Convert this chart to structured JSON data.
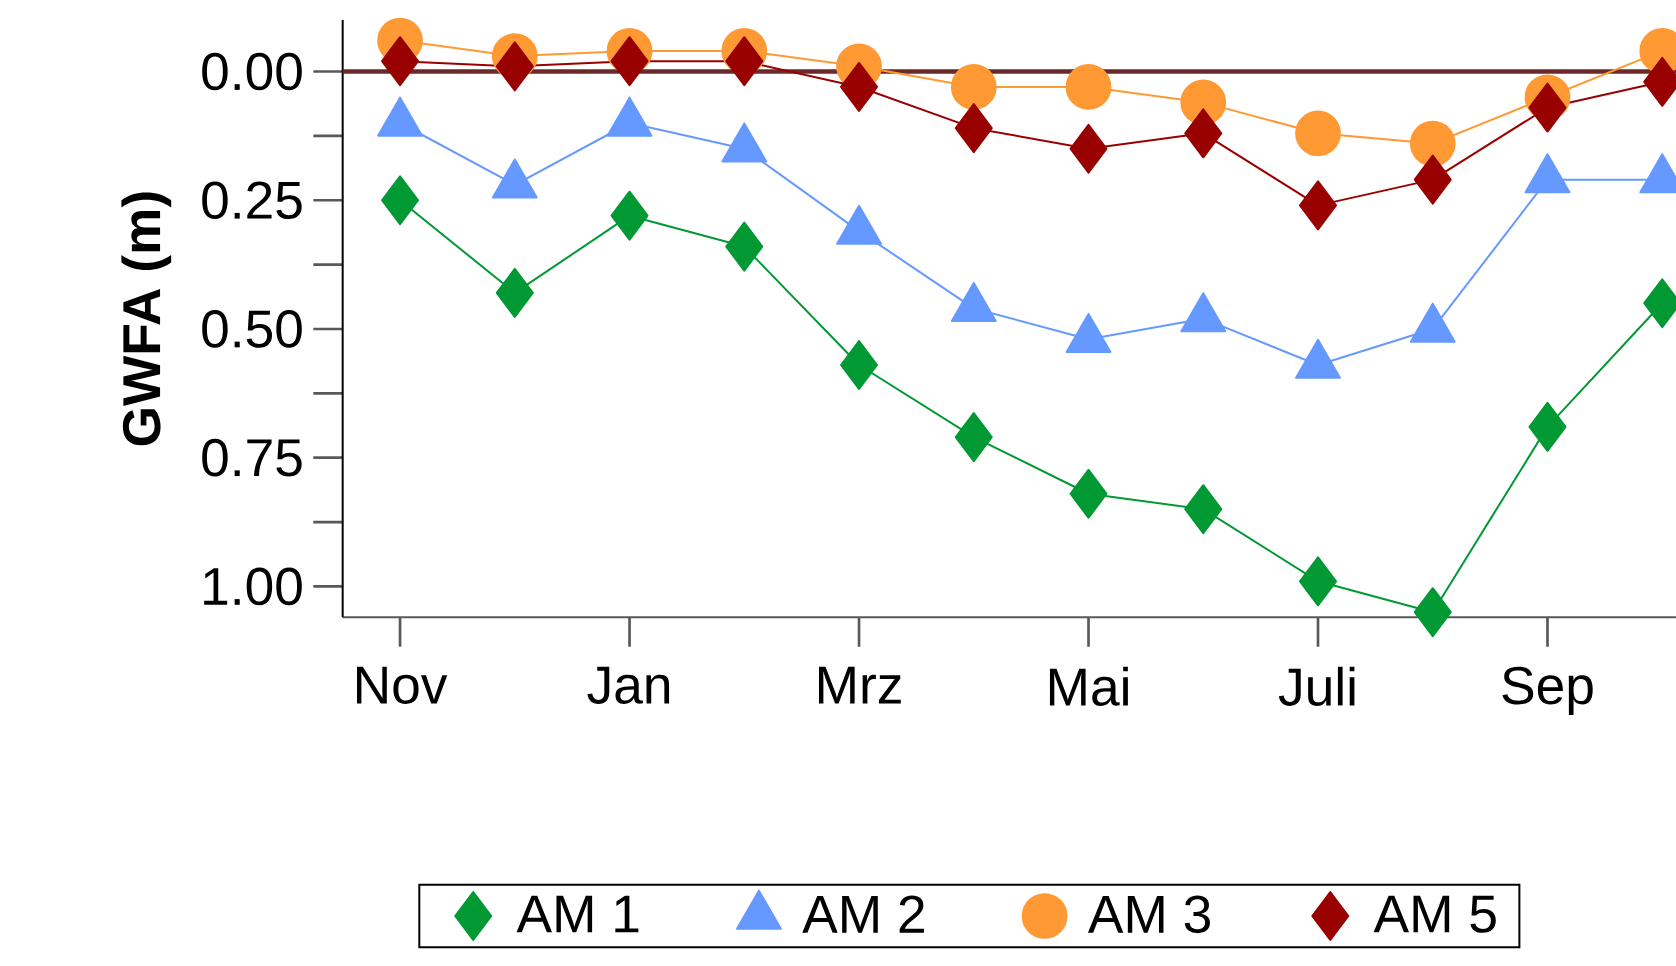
{
  "chart_data": {
    "type": "line",
    "ylabel": "GWFA (m)",
    "categories": [
      "Nov",
      null,
      "Jan",
      null,
      "Mrz",
      null,
      "Mai",
      null,
      "Juli",
      null,
      "Sep",
      null
    ],
    "series": [
      {
        "name": "AM 1",
        "color": "#009933",
        "marker": "diamond",
        "values": [
          0.25,
          0.43,
          0.28,
          0.34,
          0.57,
          0.71,
          0.82,
          0.85,
          0.99,
          1.05,
          0.69,
          0.45
        ]
      },
      {
        "name": "AM 2",
        "color": "#6699ff",
        "marker": "triangle",
        "values": [
          0.1,
          0.22,
          0.1,
          0.15,
          0.31,
          0.46,
          0.52,
          0.48,
          0.57,
          0.5,
          0.21,
          0.21
        ]
      },
      {
        "name": "AM 3",
        "color": "#ff9933",
        "marker": "circle",
        "values": [
          -0.06,
          -0.03,
          -0.04,
          -0.04,
          -0.01,
          0.03,
          0.03,
          0.06,
          0.12,
          0.14,
          0.05,
          -0.04
        ]
      },
      {
        "name": "AM 5",
        "color": "#990000",
        "marker": "diamond",
        "values": [
          -0.02,
          -0.01,
          -0.02,
          -0.02,
          0.03,
          0.11,
          0.15,
          0.12,
          0.26,
          0.21,
          0.07,
          0.02
        ]
      }
    ],
    "ylim": [
      1.06,
      -0.1
    ],
    "yticks": [
      {
        "value": 0,
        "label": "0.00"
      },
      {
        "value": 0.125,
        "label": null
      },
      {
        "value": 0.25,
        "label": "0.25"
      },
      {
        "value": 0.375,
        "label": null
      },
      {
        "value": 0.5,
        "label": "0.50"
      },
      {
        "value": 0.625,
        "label": null
      },
      {
        "value": 0.75,
        "label": "0.75"
      },
      {
        "value": 0.875,
        "label": null
      },
      {
        "value": 1,
        "label": "1.00"
      }
    ],
    "ref_lines": [
      {
        "axis": "y",
        "value": 0,
        "color": "#6b2a2a"
      }
    ],
    "grid": false,
    "legend": "bottom",
    "line_style": "solid"
  }
}
